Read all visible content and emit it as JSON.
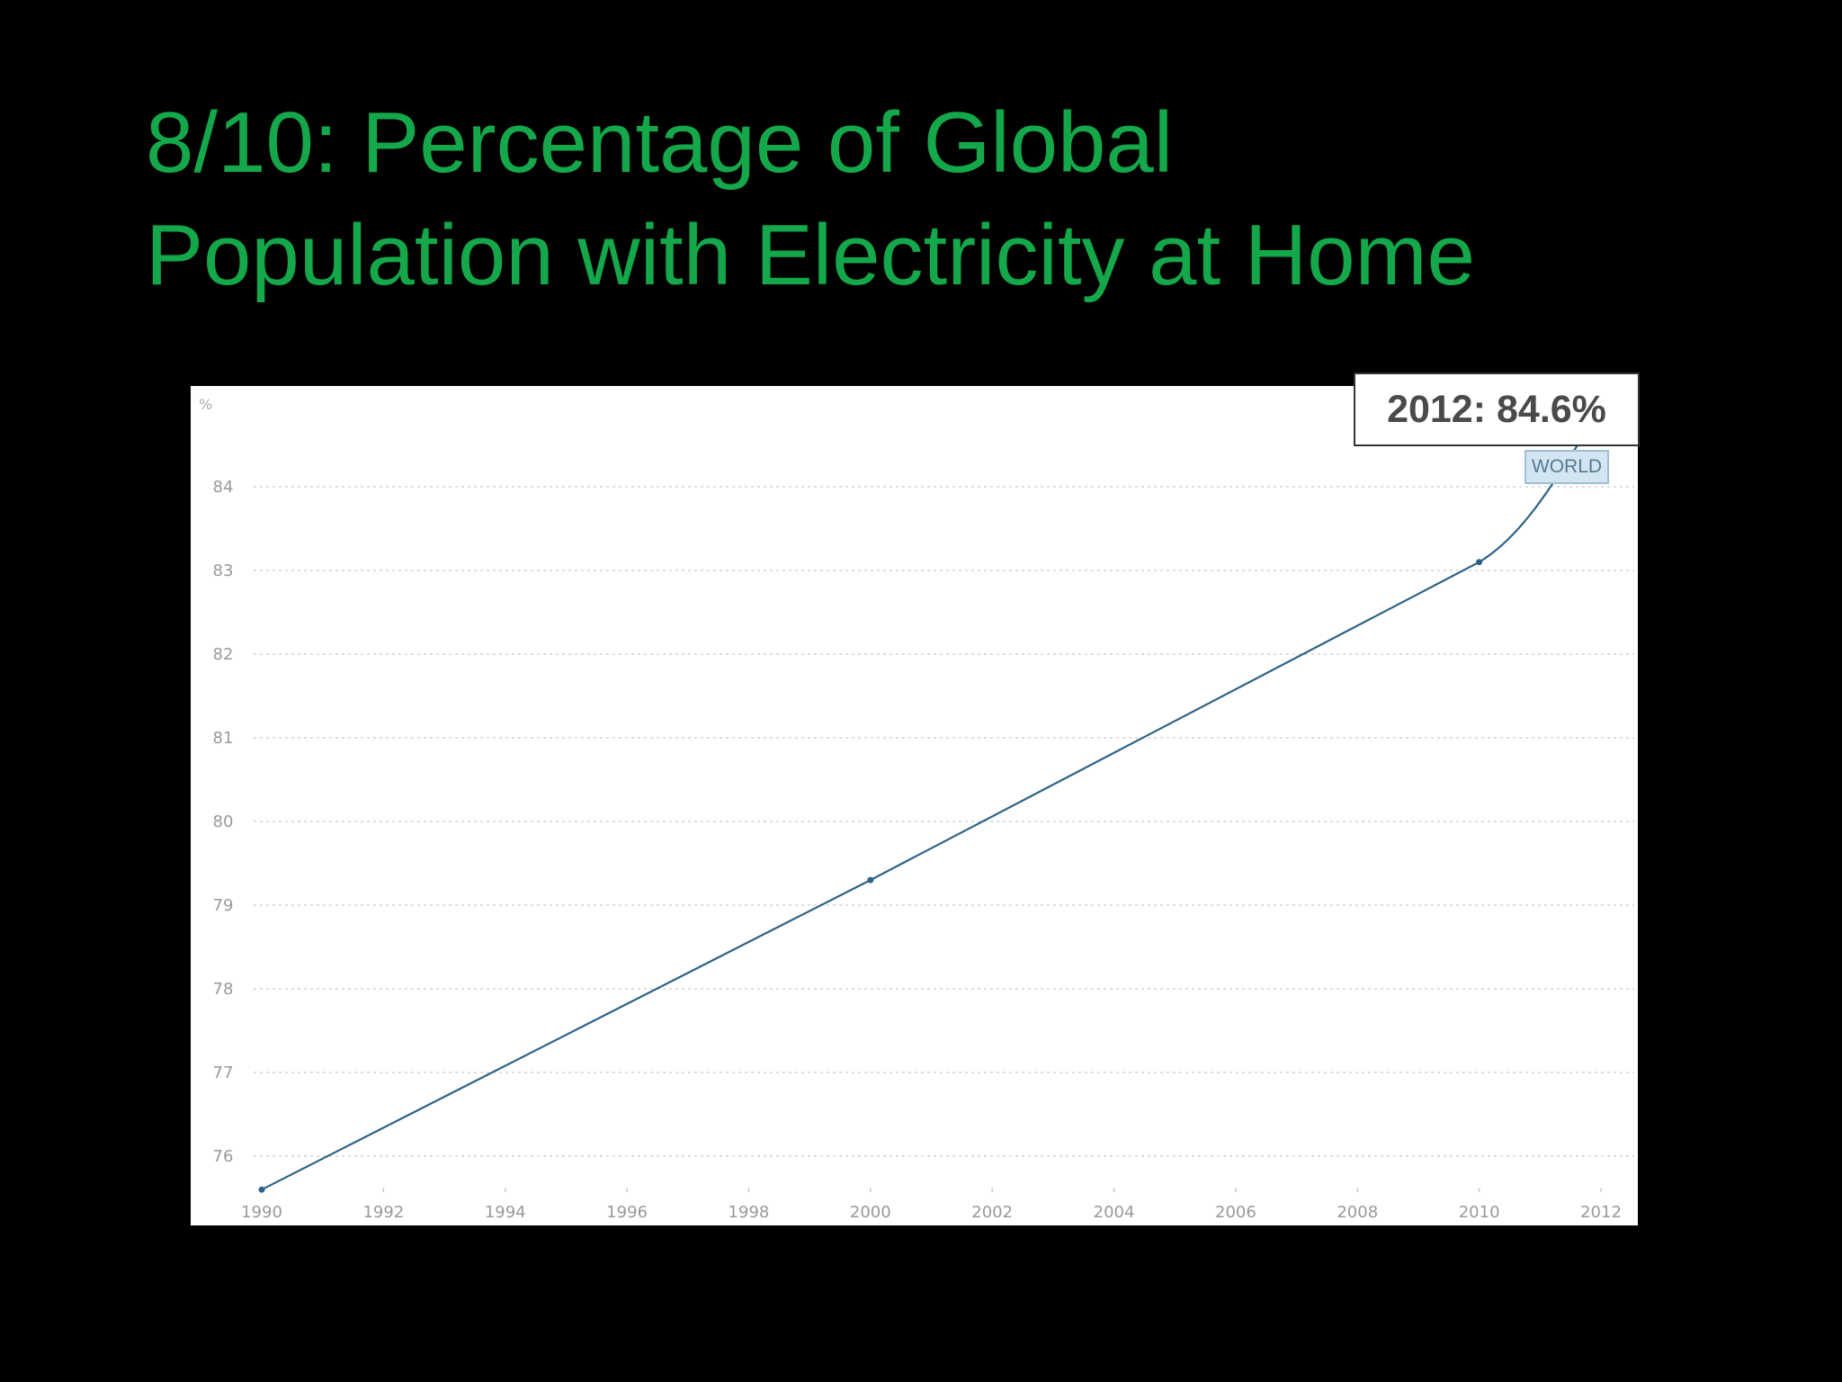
{
  "slide": {
    "title_line1": "8/10: Percentage of Global",
    "title_line2": "Population with Electricity at Home",
    "title_color": "#14a84a",
    "background": "#000000"
  },
  "callout": {
    "text": "2012: 84.6%"
  },
  "chart_data": {
    "type": "line",
    "title": "",
    "xlabel": "",
    "ylabel": "%",
    "x_ticks": [
      "1990",
      "1992",
      "1994",
      "1996",
      "1998",
      "2000",
      "2002",
      "2004",
      "2006",
      "2008",
      "2010",
      "2012"
    ],
    "y_ticks": [
      "76",
      "77",
      "78",
      "79",
      "80",
      "81",
      "82",
      "83",
      "84"
    ],
    "xlim": [
      1990,
      2012
    ],
    "ylim": [
      75.6,
      84.6
    ],
    "grid": true,
    "series": [
      {
        "name": "WORLD",
        "color": "#2e6286",
        "points": [
          {
            "x": 1990,
            "y": 75.6
          },
          {
            "x": 2000,
            "y": 79.3
          },
          {
            "x": 2010,
            "y": 83.1
          },
          {
            "x": 2012,
            "y": 84.6
          }
        ]
      }
    ]
  }
}
